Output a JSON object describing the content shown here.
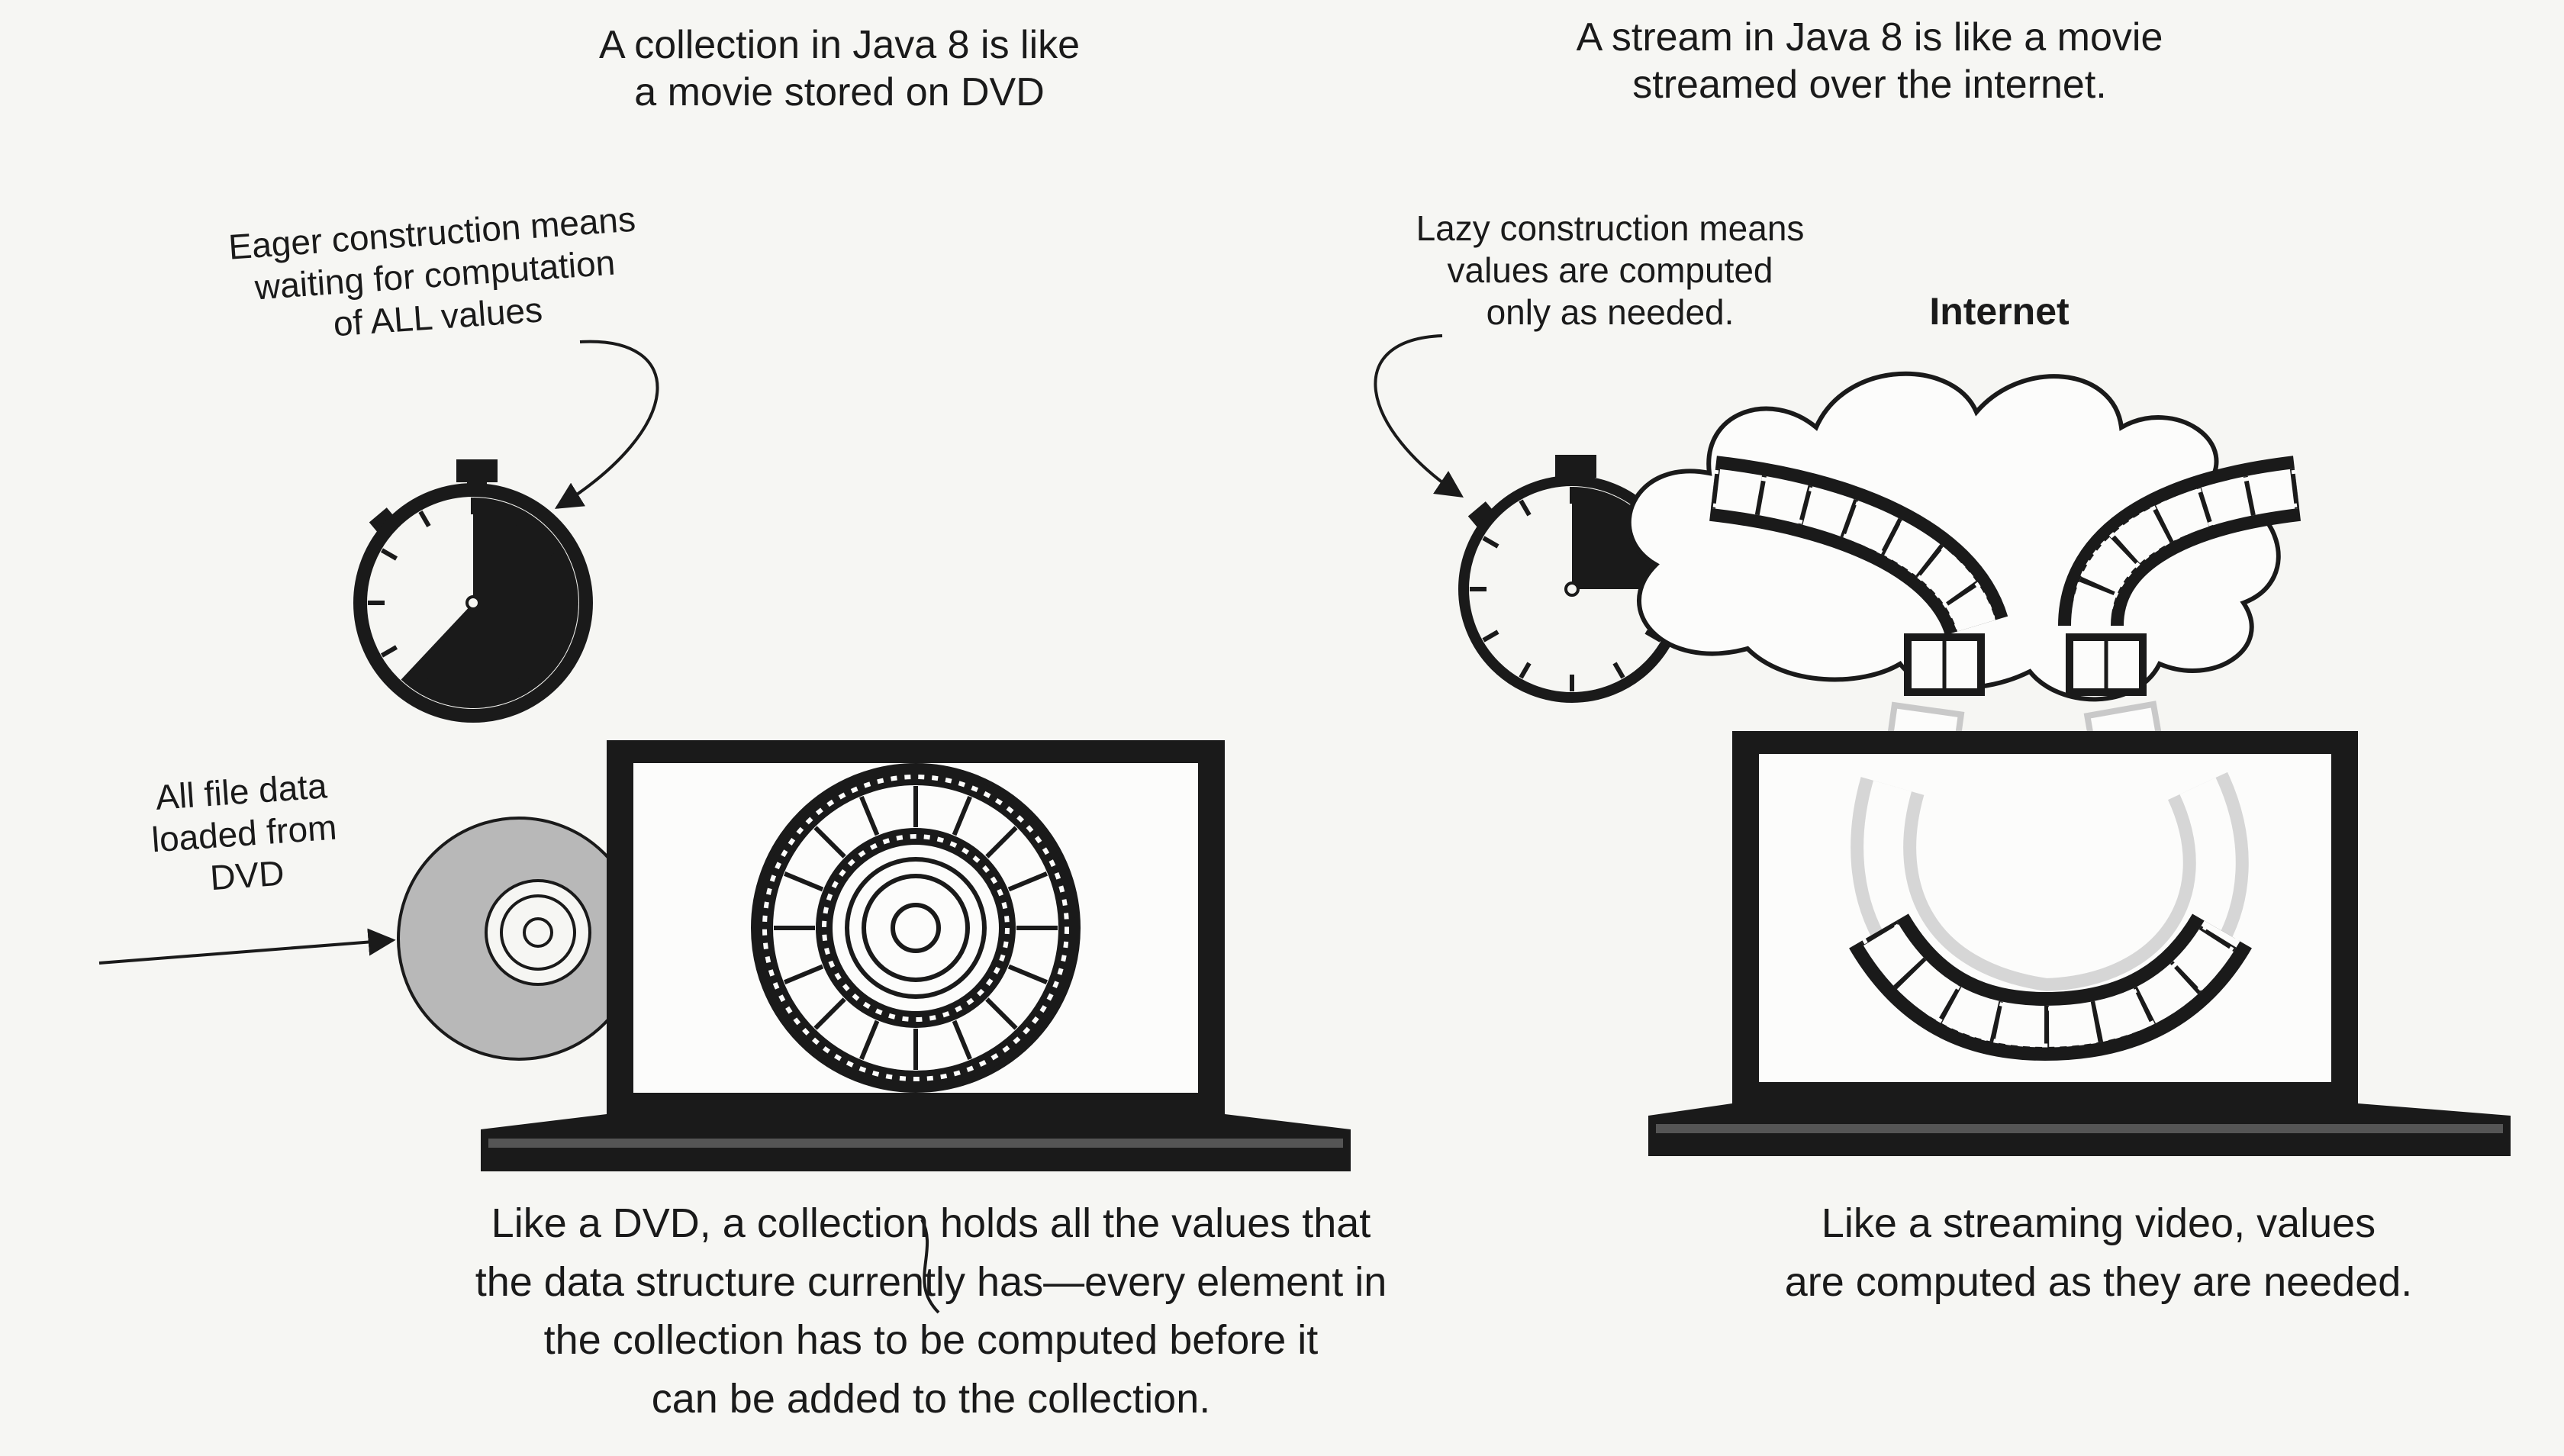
{
  "collection": {
    "heading": "A collection in Java 8 is like\na movie stored on DVD",
    "eager_note": "Eager construction means\nwaiting for computation\nof ALL values",
    "dvd_note": "All file data\nloaded from\nDVD",
    "caption": "Like a DVD, a collection holds all the values that\nthe data structure currently has—every element in\nthe collection has to be computed before it\ncan be added to the collection."
  },
  "stream": {
    "heading": "A stream in Java 8 is like a movie\nstreamed over the internet.",
    "lazy_note": "Lazy construction means\nvalues are computed\nonly as needed.",
    "internet_label": "Internet",
    "caption": "Like a streaming video, values\nare computed as they are needed."
  },
  "stopwatches": {
    "eager_fill_fraction": 0.62,
    "lazy_fill_fraction": 0.25
  },
  "colors": {
    "ink": "#1a1a1a",
    "disc": "#b8b8b8",
    "paper": "#f6f6f3"
  }
}
